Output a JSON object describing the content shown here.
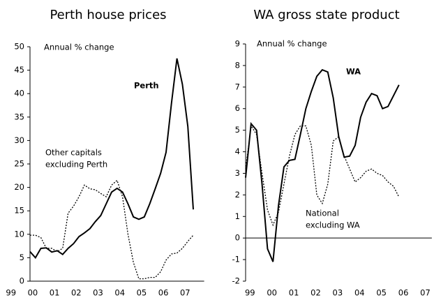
{
  "chart_data": [
    {
      "type": "line",
      "title": "Perth house prices",
      "annotations": [
        "Annual % change"
      ],
      "x": [
        1999.875,
        2000.125,
        2000.375,
        2000.625,
        2000.875,
        2001.125,
        2001.375,
        2001.625,
        2001.875,
        2002.125,
        2002.375,
        2002.625,
        2002.875,
        2003.125,
        2003.375,
        2003.625,
        2003.875,
        2004.125,
        2004.375,
        2004.625,
        2004.875,
        2005.125,
        2005.375,
        2005.625,
        2005.875,
        2006.125,
        2006.375,
        2006.625,
        2006.875,
        2007.125,
        2007.375
      ],
      "series": [
        {
          "label": [
            "Perth"
          ],
          "color": "#000000",
          "style": "solid",
          "bold": true,
          "values": [
            6.3,
            5,
            7,
            7.1,
            6.2,
            6.5,
            5.7,
            7,
            8,
            9.5,
            10.3,
            11.2,
            12.7,
            14,
            16.5,
            19,
            19.8,
            19,
            16.5,
            13.7,
            13.2,
            13.7,
            16.5,
            19.7,
            23,
            27.5,
            38,
            47.5,
            42,
            33,
            15.3
          ]
        },
        {
          "label": [
            "Other capitals",
            "excluding Perth"
          ],
          "color": "#000000",
          "style": "dotted",
          "bold": false,
          "values": [
            9.8,
            9.8,
            9.3,
            7,
            7,
            6.3,
            7,
            14.5,
            16,
            18,
            20.5,
            19.7,
            19.5,
            18.7,
            18,
            20.5,
            21.5,
            18,
            10,
            4,
            0.5,
            0.5,
            0.8,
            0.8,
            2,
            4.5,
            5.8,
            6,
            7,
            8.5,
            9.8
          ]
        }
      ],
      "xlim": [
        1999.875,
        2007.875
      ],
      "xticks": [
        {
          "value": 1999,
          "label": "99"
        },
        {
          "value": 2000,
          "label": "00"
        },
        {
          "value": 2001,
          "label": "01"
        },
        {
          "value": 2002,
          "label": "02"
        },
        {
          "value": 2003,
          "label": "03"
        },
        {
          "value": 2004,
          "label": "04"
        },
        {
          "value": 2005,
          "label": "05"
        },
        {
          "value": 2006,
          "label": "06"
        },
        {
          "value": 2007,
          "label": "07"
        }
      ],
      "ylim": [
        0,
        50
      ],
      "yticks": [
        0,
        5,
        10,
        15,
        20,
        25,
        30,
        35,
        40,
        45,
        50
      ]
    },
    {
      "type": "line",
      "title": "WA gross state product",
      "annotations": [
        "Annual % change"
      ],
      "x": [
        1998.8,
        1999.05,
        1999.3,
        1999.55,
        1999.8,
        2000.05,
        2000.3,
        2000.55,
        2000.8,
        2001.05,
        2001.3,
        2001.55,
        2001.8,
        2002.05,
        2002.3,
        2002.55,
        2002.8,
        2003.05,
        2003.3,
        2003.55,
        2003.8,
        2004.05,
        2004.3,
        2004.55,
        2004.8,
        2005.05,
        2005.3,
        2005.55,
        2005.8
      ],
      "series": [
        {
          "label": [
            "WA"
          ],
          "color": "#000000",
          "style": "solid",
          "bold": true,
          "values": [
            2.8,
            5.3,
            5,
            2.5,
            -0.5,
            -1.1,
            1.5,
            3.3,
            3.6,
            3.65,
            4.8,
            6,
            6.8,
            7.5,
            7.8,
            7.7,
            6.5,
            4.7,
            3.75,
            3.8,
            4.3,
            5.6,
            6.3,
            6.7,
            6.6,
            6,
            6.1,
            6.6,
            7.1
          ]
        },
        {
          "label": [
            "National",
            "excluding WA"
          ],
          "color": "#000000",
          "style": "dotted",
          "bold": false,
          "values": [
            3.2,
            5.2,
            4.8,
            3,
            1.3,
            0.6,
            1.2,
            2.5,
            3.8,
            4.8,
            5.2,
            5.2,
            4.3,
            2,
            1.6,
            2.5,
            4.5,
            4.7,
            3.8,
            3.2,
            2.6,
            2.8,
            3.1,
            3.2,
            3,
            2.9,
            2.6,
            2.4,
            1.9
          ]
        }
      ],
      "xlim": [
        1998.8,
        2007.3
      ],
      "xticks": [
        {
          "value": 1999,
          "label": "99"
        },
        {
          "value": 2000,
          "label": "00"
        },
        {
          "value": 2001,
          "label": "01"
        },
        {
          "value": 2002,
          "label": "02"
        },
        {
          "value": 2003,
          "label": "03"
        },
        {
          "value": 2004,
          "label": "04"
        },
        {
          "value": 2005,
          "label": "05"
        },
        {
          "value": 2006,
          "label": "06"
        },
        {
          "value": 2007,
          "label": "07"
        }
      ],
      "ylim": [
        -2,
        9
      ],
      "yticks": [
        -2,
        -1,
        0,
        1,
        2,
        3,
        4,
        5,
        6,
        7,
        8,
        9
      ]
    }
  ]
}
